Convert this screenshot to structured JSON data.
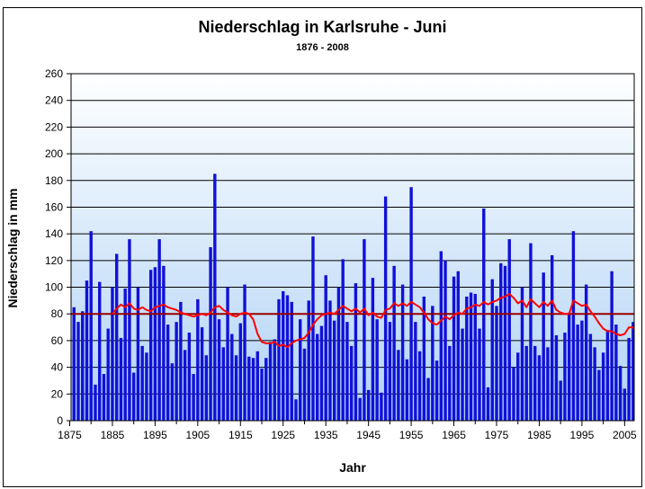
{
  "page": {
    "title": "Niederschlag in Karlsruhe - Juni",
    "subtitle": "1876 - 2008",
    "xlabel": "Jahr",
    "ylabel": "Niederschlag in mm"
  },
  "chart_data": {
    "type": "bar",
    "title": "Niederschlag in Karlsruhe - Juni",
    "subtitle": "1876 - 2008",
    "xlabel": "Jahr",
    "ylabel": "Niederschlag in mm",
    "ylim": [
      0,
      260
    ],
    "ytick_step": 20,
    "xtick_labels": [
      1875,
      1885,
      1895,
      1905,
      1915,
      1925,
      1935,
      1945,
      1955,
      1965,
      1975,
      1985,
      1995,
      2005
    ],
    "xtick_minor": [
      1880,
      1890,
      1900,
      1910,
      1920,
      1930,
      1940,
      1950,
      1960,
      1970,
      1980,
      1990,
      2000
    ],
    "grid": true,
    "legend_position": "none",
    "x_start_year": 1876,
    "x_end_year": 2008,
    "series": [
      {
        "name": "bars",
        "type": "bar",
        "start_year": 1876,
        "values": [
          85,
          74,
          82,
          105,
          142,
          27,
          104,
          35,
          69,
          100,
          125,
          62,
          99,
          136,
          36,
          100,
          56,
          51,
          113,
          115,
          136,
          116,
          72,
          43,
          74,
          89,
          53,
          66,
          35,
          91,
          70,
          49,
          130,
          185,
          76,
          55,
          100,
          65,
          49,
          73,
          102,
          48,
          47,
          52,
          39,
          47,
          59,
          61,
          91,
          97,
          94,
          89,
          16,
          76,
          54,
          90,
          138,
          65,
          71,
          109,
          90,
          75,
          100,
          121,
          74,
          56,
          103,
          17,
          136,
          23,
          107,
          76,
          21,
          168,
          74,
          116,
          53,
          102,
          46,
          175,
          74,
          52,
          93,
          32,
          86,
          45,
          127,
          120,
          56,
          108,
          112,
          69,
          93,
          96,
          95,
          69,
          159,
          25,
          106,
          86,
          118,
          116,
          136,
          40,
          51,
          100,
          56,
          133,
          56,
          49,
          111,
          55,
          124,
          64,
          30,
          66,
          81,
          142,
          72,
          75,
          102,
          65,
          55,
          38,
          51,
          68,
          112,
          72,
          41,
          24,
          62,
          74,
          63
        ]
      },
      {
        "name": "moving_average_line",
        "type": "line",
        "start_year": 1885,
        "values": [
          80,
          84,
          87,
          85,
          88,
          84,
          83,
          85,
          83,
          82,
          85,
          86,
          87,
          85,
          84,
          83,
          81,
          80,
          79,
          78,
          79,
          80,
          79,
          81,
          85,
          86,
          83,
          81,
          79,
          78,
          80,
          81,
          80,
          76,
          65,
          59,
          58,
          58,
          59,
          56,
          57,
          55,
          58,
          60,
          61,
          62,
          66,
          72,
          76,
          79,
          80,
          81,
          80,
          83,
          86,
          84,
          82,
          84,
          81,
          84,
          79,
          81,
          78,
          77,
          83,
          84,
          88,
          86,
          88,
          86,
          89,
          87,
          85,
          81,
          76,
          73,
          72,
          75,
          78,
          76,
          79,
          81,
          80,
          84,
          85,
          87,
          86,
          89,
          87,
          89,
          90,
          92,
          93,
          95,
          92,
          88,
          90,
          85,
          91,
          88,
          85,
          89,
          86,
          90,
          83,
          81,
          80,
          80,
          90,
          88,
          86,
          87,
          82,
          78,
          73,
          69,
          67,
          67,
          65,
          64,
          65,
          70,
          70,
          64
        ]
      },
      {
        "name": "overall_mean_line",
        "type": "hline",
        "value": 80
      }
    ],
    "colors": {
      "bar": "#1111d8",
      "moving_average": "#ff0000",
      "overall_mean": "#990000",
      "grid": "#000000",
      "plot_bg_top": "#feffff",
      "plot_bg_bottom": "#b0d2f6",
      "axis": "#000000",
      "text": "#000000"
    }
  }
}
